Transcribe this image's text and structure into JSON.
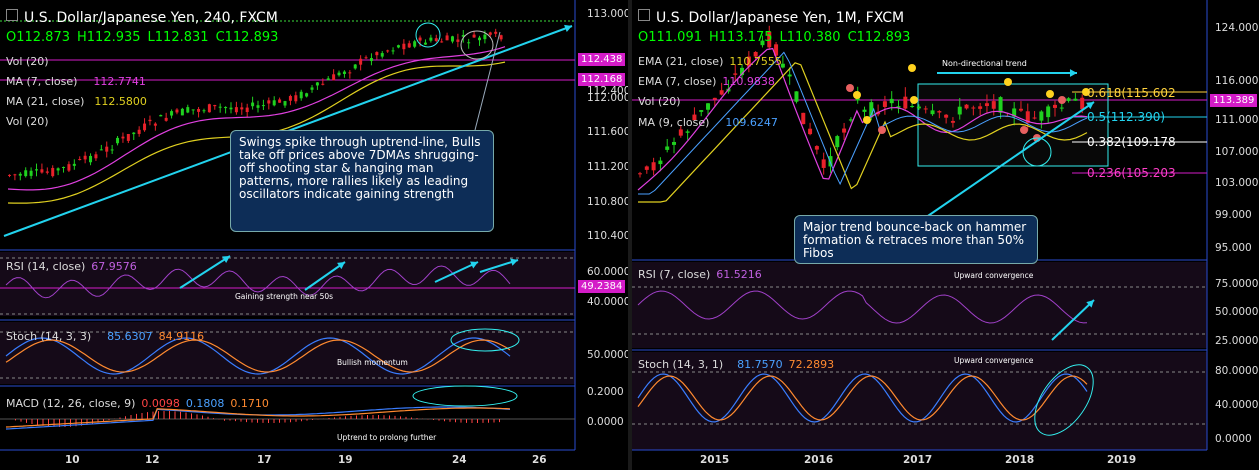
{
  "left_chart": {
    "title": "U.S. Dollar/Japanese Yen, 240, FXCM",
    "ohlc": {
      "o": "O112.873",
      "h": "H112.935",
      "l": "L112.831",
      "c": "C112.893"
    },
    "vol_label": "Vol (20)",
    "ma7": {
      "label": "MA (7, close)",
      "value": "112.7741"
    },
    "ma21": {
      "label": "MA (21, close)",
      "value": "112.5800"
    },
    "vol_label2": "Vol (20)",
    "price_ticks": [
      "113.000",
      "112.400",
      "112.000",
      "111.600",
      "111.200",
      "110.800",
      "110.400"
    ],
    "tags": {
      "tag1": "112.438",
      "tag2": "112.168",
      "rsi_tag": "49.2384"
    },
    "annotation": "Swings spike through uptrend-line, Bulls take off prices above 7DMAs shrugging-off shooting star & hanging man patterns, more rallies likely as leading oscillators indicate gaining strength",
    "rsi": {
      "label": "RSI (14, close)",
      "value": "67.9576",
      "note": "Gaining strength near 50s",
      "ticks": [
        "60.0000",
        "40.0000"
      ]
    },
    "stoch": {
      "label": "Stoch (14, 3, 3)",
      "k": "85.6307",
      "d": "84.9116",
      "note": "Bullish momentum",
      "ticks": [
        "50.0000"
      ]
    },
    "macd": {
      "label": "MACD (12, 26, close, 9)",
      "hist": "0.0098",
      "macd": "0.1808",
      "signal": "0.1710",
      "note": "Uptrend to prolong further",
      "ticks": [
        "0.2000",
        "0.0000"
      ]
    },
    "x_ticks": [
      "10",
      "12",
      "17",
      "19",
      "24",
      "26"
    ]
  },
  "right_chart": {
    "title": "U.S. Dollar/Japanese Yen, 1M, FXCM",
    "ohlc": {
      "o": "O111.091",
      "h": "H113.175",
      "l": "L110.380",
      "c": "C112.893"
    },
    "ema21": {
      "label": "EMA (21, close)",
      "value": "110.7555"
    },
    "ema7": {
      "label": "EMA (7, close)",
      "value": "110.9838"
    },
    "vol_label": "Vol (20)",
    "ma9": {
      "label": "MA (9, close)",
      "value": "109.6247"
    },
    "price_ticks": [
      "124.000",
      "116.000",
      "111.000",
      "107.000",
      "103.000",
      "99.000",
      "95.000"
    ],
    "tag": "113.389",
    "trend_label": "Non-directional trend",
    "fibs": [
      {
        "label": "0.618(115.602",
        "color": "#ffd23c"
      },
      {
        "label": "0.5(112.390)",
        "color": "#22d3ee"
      },
      {
        "label": "0.382(109.178",
        "color": "#ffffff"
      },
      {
        "label": "0.236(105.203",
        "color": "#ff3ec8"
      }
    ],
    "annotation": "Major trend bounce-back on hammer formation & retraces more than 50% Fibos",
    "rsi": {
      "label": "RSI (7, close)",
      "value": "61.5216",
      "note": "Upward convergence",
      "ticks": [
        "75.0000",
        "50.0000",
        "25.0000"
      ]
    },
    "stoch": {
      "label": "Stoch (14, 3, 1)",
      "k": "81.7570",
      "d": "72.2893",
      "note": "Upward convergence",
      "ticks": [
        "80.0000",
        "40.0000",
        "0.0000"
      ]
    },
    "x_ticks": [
      "2015",
      "2016",
      "2017",
      "2018",
      "2019"
    ]
  },
  "colors": {
    "bull": "#1fd11f",
    "bear": "#e8212a",
    "ma_fast": "#e040e0",
    "ma_slow": "#e0d020",
    "trendline": "#22d3ee",
    "tag_magenta": "#d41cc8",
    "note_box": "#0d2d57"
  }
}
